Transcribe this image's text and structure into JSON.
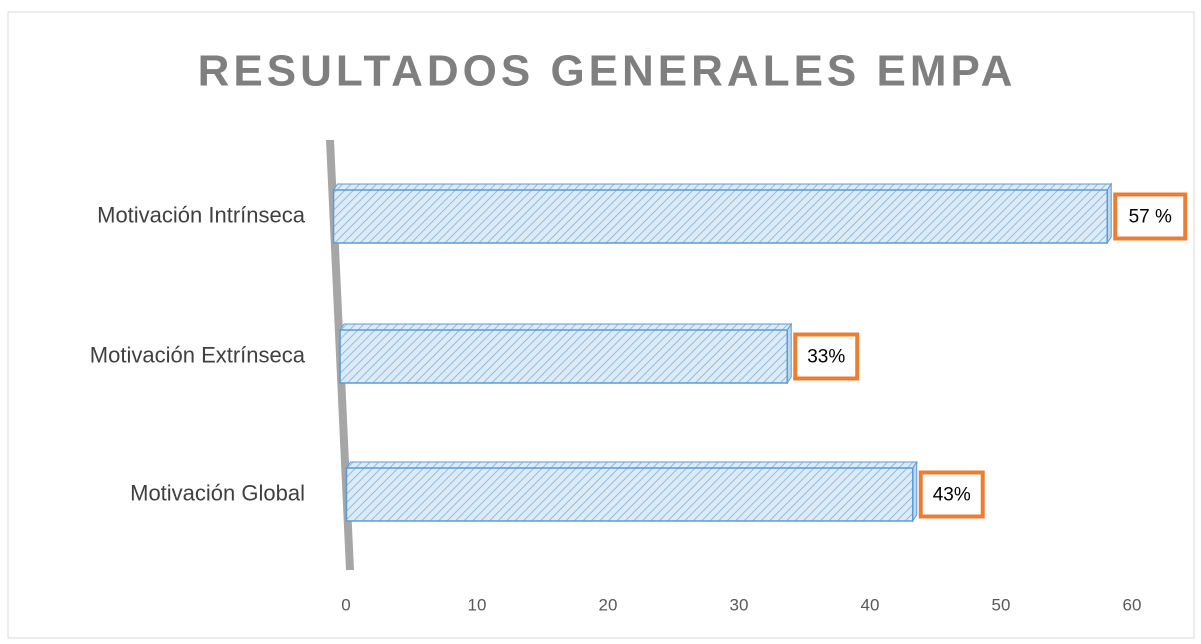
{
  "chart_data": {
    "type": "bar",
    "orientation": "horizontal",
    "title": "RESULTADOS GENERALES EMPA",
    "categories": [
      "Motivación Intrínseca",
      "Motivación Extrínseca",
      "Motivación Global"
    ],
    "values": [
      57,
      33,
      43
    ],
    "value_labels": [
      "57 %",
      "33%",
      "43%"
    ],
    "color": "#ddebf7",
    "edge_color": "#5b9bd5",
    "label_border_color": "#ed7d31",
    "xlim": [
      0,
      60
    ],
    "xticks": [
      0,
      10,
      20,
      30,
      40,
      50,
      60
    ]
  }
}
